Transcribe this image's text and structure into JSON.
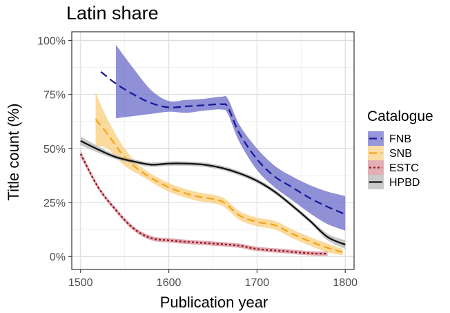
{
  "chart_data": {
    "type": "line",
    "title": "Latin share",
    "xlabel": "Publication year",
    "ylabel": "Title count (%)",
    "xlim": [
      1490,
      1810
    ],
    "ylim": [
      -0.06,
      1.04
    ],
    "x_ticks": [
      1500,
      1600,
      1700,
      1800
    ],
    "x_tick_labels": [
      "1500",
      "1600",
      "1700",
      "1800"
    ],
    "y_ticks": [
      0,
      0.25,
      0.5,
      0.75,
      1.0
    ],
    "y_tick_labels": [
      "0%",
      "25%",
      "50%",
      "75%",
      "100%"
    ],
    "grid": true,
    "legend": {
      "title": "Catalogue",
      "position": "right",
      "entries": [
        "FNB",
        "SNB",
        "ESTC",
        "HPBD"
      ]
    },
    "series": [
      {
        "name": "FNB",
        "color": "#1a1a99",
        "ribbon_color": "#6b6bc9",
        "dash": "dashed",
        "x": [
          1523,
          1540,
          1560,
          1580,
          1600,
          1620,
          1640,
          1660,
          1667,
          1680,
          1700,
          1720,
          1740,
          1760,
          1780,
          1800
        ],
        "y": [
          0.855,
          0.8,
          0.75,
          0.71,
          0.69,
          0.695,
          0.7,
          0.705,
          0.69,
          0.57,
          0.45,
          0.37,
          0.32,
          0.27,
          0.23,
          0.195
        ],
        "lower": [
          null,
          0.64,
          0.65,
          0.66,
          0.67,
          0.665,
          0.675,
          0.68,
          0.66,
          0.53,
          0.4,
          0.32,
          0.26,
          0.2,
          0.15,
          0.12
        ],
        "upper": [
          null,
          0.98,
          0.87,
          0.77,
          0.72,
          0.725,
          0.73,
          0.74,
          0.73,
          0.61,
          0.5,
          0.42,
          0.37,
          0.33,
          0.3,
          0.28
        ]
      },
      {
        "name": "SNB",
        "color": "#f2a51d",
        "ribbon_color": "#f9ce7c",
        "dash": "dashed",
        "x": [
          1517,
          1530,
          1550,
          1570,
          1600,
          1630,
          1660,
          1680,
          1700,
          1720,
          1740,
          1760,
          1780,
          1797
        ],
        "y": [
          0.635,
          0.57,
          0.46,
          0.39,
          0.32,
          0.28,
          0.255,
          0.19,
          0.16,
          0.145,
          0.105,
          0.07,
          0.04,
          0.02
        ],
        "lower": [
          0.51,
          0.5,
          0.42,
          0.37,
          0.3,
          0.26,
          0.235,
          0.17,
          0.14,
          0.125,
          0.085,
          0.05,
          0.02,
          0.005
        ],
        "upper": [
          0.76,
          0.64,
          0.5,
          0.41,
          0.34,
          0.3,
          0.275,
          0.21,
          0.18,
          0.165,
          0.125,
          0.09,
          0.06,
          0.035
        ]
      },
      {
        "name": "ESTC",
        "color": "#8b1a1a",
        "ribbon_color": "#d98c99",
        "dash": "dotted",
        "x": [
          1500,
          1520,
          1540,
          1560,
          1580,
          1600,
          1620,
          1650,
          1680,
          1700,
          1730,
          1760,
          1780
        ],
        "y": [
          0.475,
          0.32,
          0.215,
          0.13,
          0.085,
          0.075,
          0.068,
          0.06,
          0.05,
          0.035,
          0.025,
          0.015,
          0.013
        ],
        "lower": [
          0.46,
          0.31,
          0.205,
          0.12,
          0.075,
          0.065,
          0.058,
          0.05,
          0.04,
          0.025,
          0.015,
          0.005,
          0.003
        ],
        "upper": [
          0.49,
          0.33,
          0.225,
          0.14,
          0.095,
          0.085,
          0.078,
          0.07,
          0.06,
          0.045,
          0.035,
          0.025,
          0.023
        ]
      },
      {
        "name": "HPBD",
        "color": "#111111",
        "ribbon_color": "#b3b3b3",
        "dash": "solid",
        "x": [
          1500,
          1520,
          1540,
          1560,
          1580,
          1600,
          1620,
          1640,
          1660,
          1680,
          1700,
          1720,
          1740,
          1760,
          1780,
          1800
        ],
        "y": [
          0.535,
          0.495,
          0.46,
          0.44,
          0.425,
          0.43,
          0.43,
          0.425,
          0.41,
          0.385,
          0.35,
          0.3,
          0.235,
          0.165,
          0.09,
          0.055
        ],
        "lower": [
          0.515,
          0.48,
          0.45,
          0.43,
          0.415,
          0.42,
          0.42,
          0.415,
          0.4,
          0.375,
          0.34,
          0.29,
          0.225,
          0.155,
          0.075,
          0.035
        ],
        "upper": [
          0.555,
          0.51,
          0.47,
          0.45,
          0.435,
          0.44,
          0.44,
          0.435,
          0.42,
          0.395,
          0.36,
          0.31,
          0.245,
          0.175,
          0.105,
          0.075
        ]
      }
    ]
  }
}
